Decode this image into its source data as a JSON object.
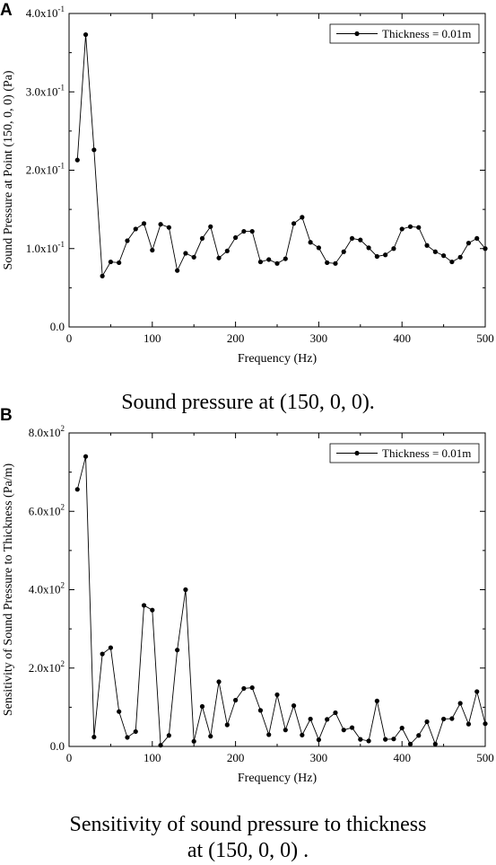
{
  "chart_data": [
    {
      "type": "line",
      "panel": "A",
      "caption": "Sound pressure at (150, 0, 0).",
      "xlabel": "Frequency (Hz)",
      "ylabel": "Sound Pressure at Point (150, 0, 0) (Pa)",
      "xlim": [
        0,
        500
      ],
      "ylim": [
        0,
        0.4
      ],
      "xticks": [
        0,
        100,
        200,
        300,
        400,
        500
      ],
      "xtick_labels": [
        "0",
        "100",
        "200",
        "300",
        "400",
        "500"
      ],
      "yticks": [
        0,
        0.1,
        0.2,
        0.3,
        0.4
      ],
      "ytick_labels": [
        {
          "base": "0.0",
          "exp": ""
        },
        {
          "base": "1.0x10",
          "exp": "-1"
        },
        {
          "base": "2.0x10",
          "exp": "-1"
        },
        {
          "base": "3.0x10",
          "exp": "-1"
        },
        {
          "base": "4.0x10",
          "exp": "-1"
        }
      ],
      "legend_position": "top-right",
      "grid": false,
      "series": [
        {
          "name": "Thickness = 0.01m",
          "color": "#000000",
          "marker": "circle",
          "x": [
            10,
            20,
            30,
            40,
            50,
            60,
            70,
            80,
            90,
            100,
            110,
            120,
            130,
            140,
            150,
            160,
            170,
            180,
            190,
            200,
            210,
            220,
            230,
            240,
            250,
            260,
            270,
            280,
            290,
            300,
            310,
            320,
            330,
            340,
            350,
            360,
            370,
            380,
            390,
            400,
            410,
            420,
            430,
            440,
            450,
            460,
            470,
            480,
            490,
            500
          ],
          "y": [
            0.213,
            0.373,
            0.226,
            0.065,
            0.083,
            0.082,
            0.11,
            0.125,
            0.132,
            0.098,
            0.131,
            0.127,
            0.072,
            0.094,
            0.089,
            0.113,
            0.128,
            0.088,
            0.097,
            0.114,
            0.122,
            0.122,
            0.083,
            0.086,
            0.081,
            0.087,
            0.132,
            0.14,
            0.108,
            0.101,
            0.082,
            0.081,
            0.096,
            0.113,
            0.111,
            0.101,
            0.09,
            0.092,
            0.1,
            0.125,
            0.128,
            0.127,
            0.104,
            0.096,
            0.091,
            0.083,
            0.089,
            0.107,
            0.113,
            0.1
          ]
        }
      ]
    },
    {
      "type": "line",
      "panel": "B",
      "caption_lines": [
        "Sensitivity of sound pressure to thickness",
        "at (150, 0, 0) ."
      ],
      "xlabel": "Frequency (Hz)",
      "ylabel": "Sensitivity of Sound Pressure to Thickness (Pa/m)",
      "xlim": [
        0,
        500
      ],
      "ylim": [
        0,
        800
      ],
      "xticks": [
        0,
        100,
        200,
        300,
        400,
        500
      ],
      "xtick_labels": [
        "0",
        "100",
        "200",
        "300",
        "400",
        "500"
      ],
      "yticks": [
        0,
        200,
        400,
        600,
        800
      ],
      "ytick_labels": [
        {
          "base": "0.0",
          "exp": ""
        },
        {
          "base": "2.0x10",
          "exp": "2"
        },
        {
          "base": "4.0x10",
          "exp": "2"
        },
        {
          "base": "6.0x10",
          "exp": "2"
        },
        {
          "base": "8.0x10",
          "exp": "2"
        }
      ],
      "legend_position": "top-right",
      "grid": false,
      "series": [
        {
          "name": "Thickness = 0.01m",
          "color": "#000000",
          "marker": "circle",
          "x": [
            10,
            20,
            30,
            40,
            50,
            60,
            70,
            80,
            90,
            100,
            110,
            120,
            130,
            140,
            150,
            160,
            170,
            180,
            190,
            200,
            210,
            220,
            230,
            240,
            250,
            260,
            270,
            280,
            290,
            300,
            310,
            320,
            330,
            340,
            350,
            360,
            370,
            380,
            390,
            400,
            410,
            420,
            430,
            440,
            450,
            460,
            470,
            480,
            490,
            500
          ],
          "y": [
            656,
            740,
            24,
            236,
            252,
            89,
            23,
            38,
            360,
            348,
            3,
            28,
            246,
            400,
            13,
            102,
            26,
            165,
            55,
            118,
            148,
            150,
            92,
            30,
            132,
            42,
            104,
            29,
            70,
            17,
            69,
            86,
            42,
            48,
            18,
            14,
            116,
            18,
            19,
            47,
            6,
            28,
            63,
            6,
            70,
            71,
            110,
            57,
            140,
            58
          ]
        }
      ]
    }
  ]
}
